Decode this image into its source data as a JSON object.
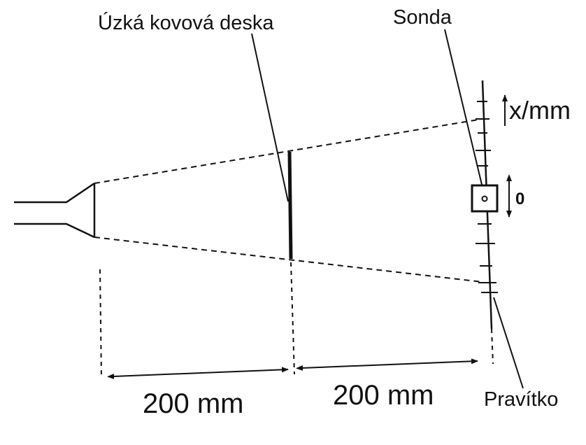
{
  "labels": {
    "plate": "Úzká kovová deska",
    "probe": "Sonda",
    "axis": "x/mm",
    "zero": "0",
    "dist_left": "200 mm",
    "dist_right": "200 mm",
    "ruler": "Pravítko"
  },
  "colors": {
    "ink": "#111111",
    "background": "#ffffff"
  }
}
